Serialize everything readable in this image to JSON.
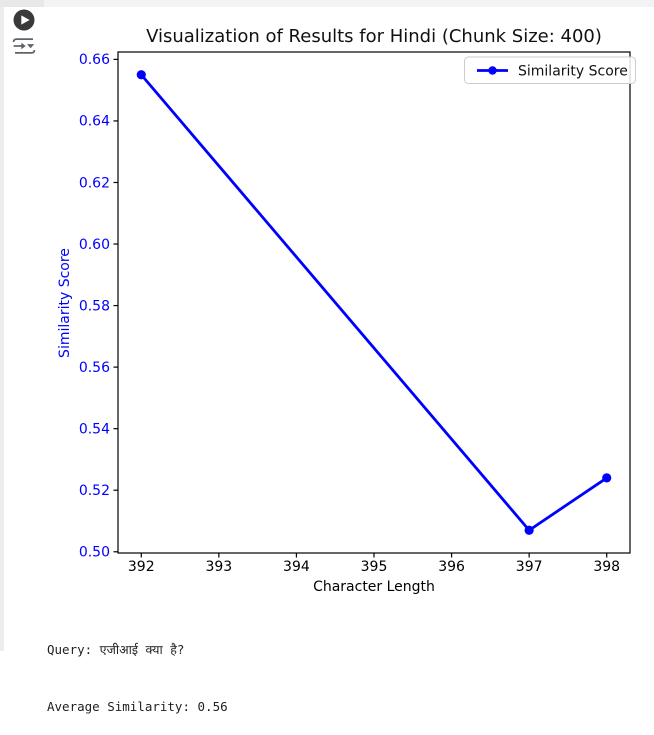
{
  "cell_toolbar": {
    "run_button": {
      "icon": "play-circle-icon",
      "action": "run-cell"
    },
    "options_button": {
      "icon": "run-options-icon",
      "action": "cell-output-options"
    }
  },
  "chart_data": {
    "type": "line",
    "title": "Visualization of Results for Hindi (Chunk Size: 400)",
    "xlabel": "Character Length",
    "ylabel": "Similarity Score",
    "series": [
      {
        "name": "Similarity Score",
        "x": [
          392,
          397,
          398
        ],
        "y": [
          0.655,
          0.507,
          0.524
        ],
        "color": "#0000ff",
        "marker": "circle",
        "line_style": "solid"
      }
    ],
    "xticks": [
      392,
      393,
      394,
      395,
      396,
      397,
      398
    ],
    "yticks": [
      0.5,
      0.52,
      0.54,
      0.56,
      0.58,
      0.6,
      0.62,
      0.64,
      0.66
    ],
    "ytick_decimals": 2,
    "xlim": [
      391.7,
      398.3
    ],
    "ylim": [
      0.4996,
      0.6624
    ],
    "grid": false,
    "legend_position": "upper right",
    "colors": {
      "xtick_label": "#000000",
      "ytick_label": "#0000ff",
      "xlabel": "#000000",
      "ylabel": "#0000ff",
      "title": "#111111",
      "axis": "#000000",
      "legend_border": "#cccccc",
      "legend_bg": "#ffffff"
    }
  },
  "console": {
    "query_line": "Query: एजीआई क्या है?",
    "average_line": "Average Similarity: 0.56"
  }
}
